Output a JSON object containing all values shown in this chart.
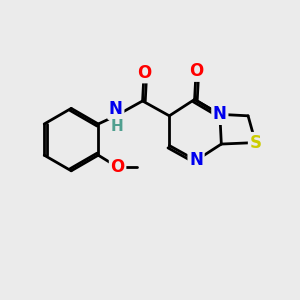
{
  "bg_color": "#ebebeb",
  "bond_color": "#000000",
  "bond_lw": 2.0,
  "colors": {
    "N": "#0000ee",
    "O": "#ff0000",
    "S": "#cccc00",
    "H": "#50a090"
  },
  "fs": 12,
  "figsize": [
    3.0,
    3.0
  ],
  "dpi": 100
}
